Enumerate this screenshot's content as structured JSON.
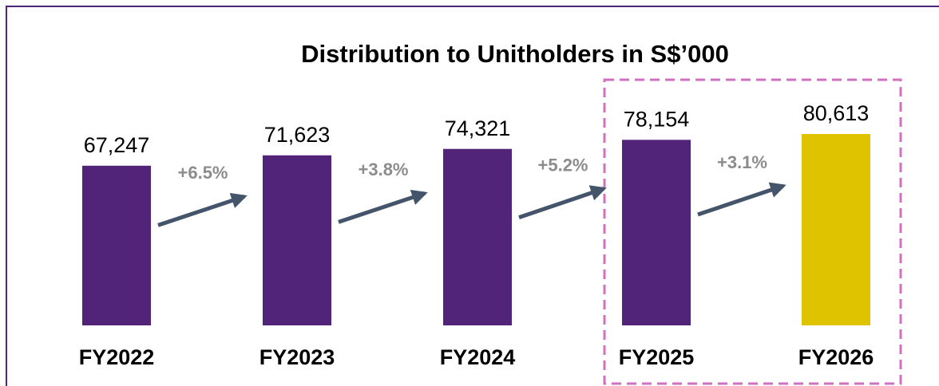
{
  "chart_data": {
    "type": "bar",
    "title": "Distribution to Unitholders in S$’000",
    "categories": [
      "FY2022",
      "FY2023",
      "FY2024",
      "FY2025",
      "FY2026"
    ],
    "values": [
      67247,
      71623,
      74321,
      78154,
      80613
    ],
    "value_labels": [
      "67,247",
      "71,623",
      "74,321",
      "78,154",
      "80,613"
    ],
    "colors": [
      "#51247a",
      "#51247a",
      "#51247a",
      "#51247a",
      "#dfc200"
    ],
    "annotations": [
      "+6.5%",
      "+3.8%",
      "+5.2%",
      "+3.1%"
    ]
  }
}
